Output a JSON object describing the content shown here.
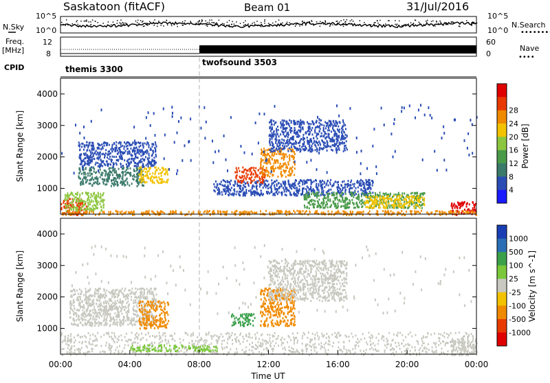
{
  "header": {
    "station": "Saskatoon (fitACF)",
    "beam": "Beam 01",
    "date": "31/Jul/2016"
  },
  "status_panel": {
    "left_labels": {
      "nsky": "N.Sky",
      "freq": "Freq.",
      "freq_unit": "[MHz]",
      "cpid": "CPID"
    },
    "right_labels": {
      "nsearch": "N.Search",
      "nave": "Nave"
    },
    "nsky_ticks": [
      "10^5",
      "10^0"
    ],
    "nsearch_ticks": [
      "10^5",
      "10^0"
    ],
    "freq_ticks": [
      "12",
      "8"
    ],
    "nave_ticks": [
      "60",
      "0"
    ],
    "cpid_modes": [
      {
        "label": "themis 3300",
        "start_hour": 0,
        "end_hour": 8
      },
      {
        "label": "twofsound 3503",
        "start_hour": 8,
        "end_hour": 24
      }
    ]
  },
  "chart_data": [
    {
      "type": "heatmap",
      "name": "power",
      "ylabel": "Slant Range [km]",
      "xlabel": "",
      "xlim": [
        0,
        24
      ],
      "ylim": [
        180,
        4500
      ],
      "y_ticks": [
        1000,
        2000,
        3000,
        4000
      ],
      "colorbar": {
        "label": "Power [dB]",
        "ticks": [
          "4",
          "8",
          "12",
          "16",
          "20",
          "24",
          "28"
        ],
        "colors": [
          "#1a1aff",
          "#2a4db5",
          "#3b7a6a",
          "#4a9a4a",
          "#8cc63f",
          "#f2c200",
          "#f08a00",
          "#e83a00",
          "#e00000"
        ]
      },
      "scatter_bands": [
        {
          "t0": 0.0,
          "t1": 1.5,
          "r0": 180,
          "r1": 700,
          "color": "#e83a00"
        },
        {
          "t0": 0.2,
          "t1": 2.5,
          "r0": 300,
          "r1": 900,
          "color": "#8cc63f"
        },
        {
          "t0": 1.0,
          "t1": 4.8,
          "r0": 1100,
          "r1": 1700,
          "color": "#3b7a6a"
        },
        {
          "t0": 1.0,
          "t1": 5.5,
          "r0": 1700,
          "r1": 2500,
          "color": "#2a4db5"
        },
        {
          "t0": 4.5,
          "t1": 6.2,
          "r0": 1200,
          "r1": 1700,
          "color": "#f2c200"
        },
        {
          "t0": 8.8,
          "t1": 18.0,
          "r0": 800,
          "r1": 1300,
          "color": "#2a4db5"
        },
        {
          "t0": 10.0,
          "t1": 11.8,
          "r0": 1200,
          "r1": 1700,
          "color": "#e83a00"
        },
        {
          "t0": 11.5,
          "t1": 13.5,
          "r0": 1400,
          "r1": 2300,
          "color": "#f08a00"
        },
        {
          "t0": 12.0,
          "t1": 16.5,
          "r0": 2200,
          "r1": 3200,
          "color": "#2a4db5"
        },
        {
          "t0": 14.0,
          "t1": 21.0,
          "r0": 400,
          "r1": 900,
          "color": "#4a9a4a"
        },
        {
          "t0": 17.5,
          "t1": 21.0,
          "r0": 400,
          "r1": 800,
          "color": "#f2c200"
        },
        {
          "t0": 22.5,
          "t1": 24.0,
          "r0": 180,
          "r1": 600,
          "color": "#e00000"
        },
        {
          "t0": 0.0,
          "t1": 24.0,
          "r0": 180,
          "r1": 320,
          "color": "#f08a00"
        }
      ]
    },
    {
      "type": "heatmap",
      "name": "velocity",
      "ylabel": "Slant Range [km]",
      "xlabel": "Time UT",
      "xlim": [
        0,
        24
      ],
      "ylim": [
        180,
        4500
      ],
      "x_ticks": [
        "00:00",
        "04:00",
        "08:00",
        "12:00",
        "16:00",
        "20:00",
        "00:00"
      ],
      "y_ticks": [
        1000,
        2000,
        3000,
        4000
      ],
      "colorbar": {
        "label": "Velocity [m s^-1]",
        "ticks": [
          "1000",
          "500",
          "100",
          "25",
          "-25",
          "-100",
          "-500",
          "-1000"
        ],
        "colors": [
          "#1a3fb5",
          "#2a6fb5",
          "#3aa04a",
          "#7ac83a",
          "#c8c8c0",
          "#f2c200",
          "#f08a00",
          "#e83a00",
          "#e00000"
        ]
      },
      "scatter_bands": [
        {
          "t0": 0.0,
          "t1": 24.0,
          "r0": 180,
          "r1": 900,
          "color": "#c8c8c0"
        },
        {
          "t0": 0.5,
          "t1": 5.5,
          "r0": 1100,
          "r1": 2300,
          "color": "#c8c8c0"
        },
        {
          "t0": 4.5,
          "t1": 6.2,
          "r0": 1000,
          "r1": 1900,
          "color": "#f08a00"
        },
        {
          "t0": 9.8,
          "t1": 11.2,
          "r0": 1100,
          "r1": 1500,
          "color": "#3aa04a"
        },
        {
          "t0": 11.5,
          "t1": 13.5,
          "r0": 1100,
          "r1": 2300,
          "color": "#f08a00"
        },
        {
          "t0": 12.0,
          "t1": 16.5,
          "r0": 1900,
          "r1": 3200,
          "color": "#c8c8c0"
        },
        {
          "t0": 4.0,
          "t1": 9.0,
          "r0": 300,
          "r1": 500,
          "color": "#7ac83a"
        },
        {
          "t0": 22.5,
          "t1": 24.0,
          "r0": 180,
          "r1": 700,
          "color": "#c8c8c0"
        }
      ]
    }
  ],
  "colors": {
    "mode_change_line": "#b0b0b0"
  }
}
